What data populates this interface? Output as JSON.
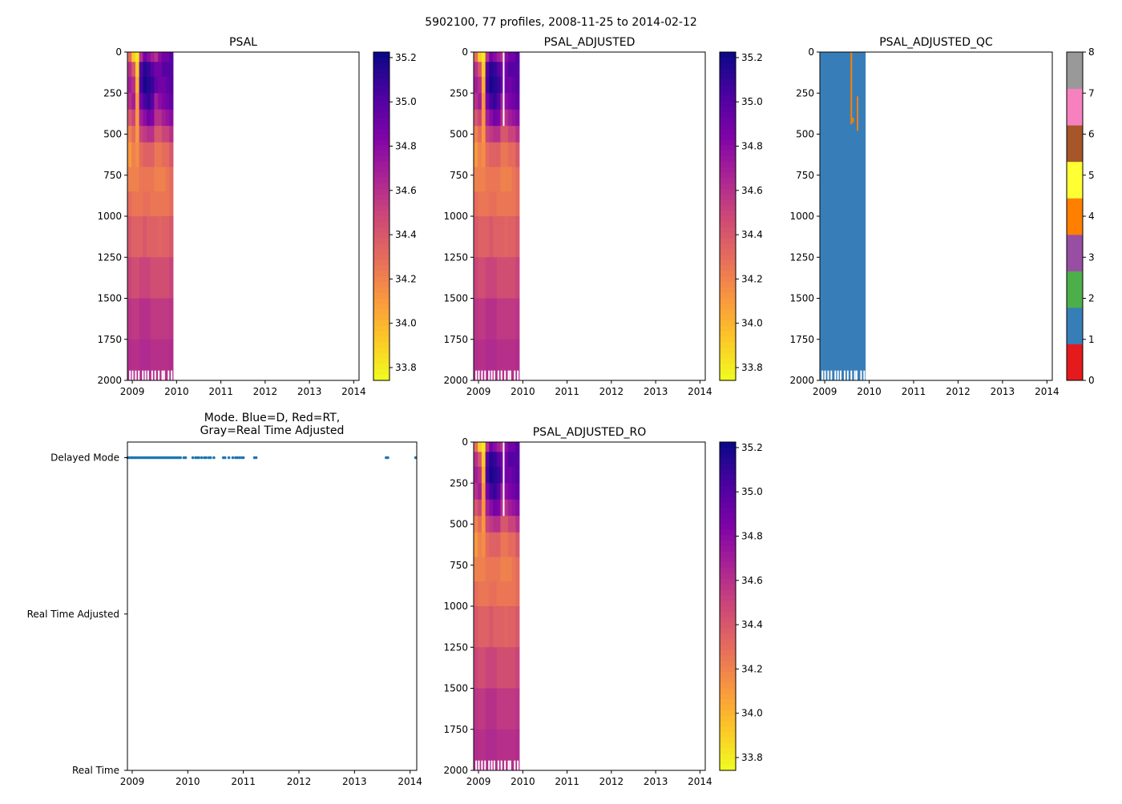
{
  "suptitle": "5902100, 77 profiles, 2008-11-25 to 2014-02-12",
  "chart_data": [
    {
      "id": "psal",
      "type": "heatmap",
      "title": "PSAL",
      "xlim": [
        2008.89,
        2014.12
      ],
      "ylim": [
        2000,
        0
      ],
      "xticks": [
        2009,
        2010,
        2011,
        2012,
        2013,
        2014
      ],
      "yticks": [
        0,
        250,
        500,
        750,
        1000,
        1250,
        1500,
        1750,
        2000
      ],
      "colorbar": {
        "cmap": "plasma_r",
        "range": [
          33.742,
          35.225
        ],
        "ticks": [
          "33.8",
          "34.0",
          "34.2",
          "34.4",
          "34.6",
          "34.8",
          "35.0",
          "35.2"
        ]
      },
      "columns_start": 2008.9,
      "columns_end": 2009.92,
      "depth_bounds": [
        0,
        60,
        150,
        250,
        350,
        450,
        550,
        700,
        850,
        1000,
        1250,
        1500,
        1750,
        2000
      ],
      "values": [
        [
          34.3,
          33.9,
          33.8,
          34.6,
          34.9,
          34.8,
          34.7,
          34.6,
          34.8,
          34.9,
          34.9,
          35.0
        ],
        [
          34.6,
          34.4,
          33.9,
          35.0,
          35.15,
          35.1,
          35.0,
          34.9,
          34.9,
          35.0,
          35.0,
          35.0
        ],
        [
          34.7,
          34.6,
          34.0,
          35.05,
          35.2,
          35.15,
          35.1,
          34.95,
          34.9,
          34.9,
          34.95,
          35.0
        ],
        [
          34.6,
          34.7,
          34.1,
          34.9,
          35.05,
          35.1,
          35.0,
          34.7,
          34.8,
          34.85,
          34.9,
          34.95
        ],
        [
          34.4,
          34.5,
          34.1,
          34.7,
          34.8,
          34.9,
          34.85,
          34.6,
          34.6,
          34.7,
          34.75,
          34.8
        ],
        [
          34.2,
          34.3,
          34.1,
          34.5,
          34.55,
          34.6,
          34.6,
          34.4,
          34.4,
          34.5,
          34.5,
          34.6
        ],
        [
          34.1,
          34.2,
          34.15,
          34.3,
          34.35,
          34.35,
          34.35,
          34.25,
          34.25,
          34.3,
          34.3,
          34.4
        ],
        [
          34.2,
          34.2,
          34.2,
          34.25,
          34.25,
          34.25,
          34.25,
          34.2,
          34.2,
          34.2,
          34.25,
          34.3
        ],
        [
          34.3,
          34.25,
          34.25,
          34.25,
          34.28,
          34.28,
          34.25,
          34.25,
          34.25,
          34.25,
          34.25,
          34.3
        ],
        [
          34.4,
          34.35,
          34.35,
          34.35,
          34.4,
          34.35,
          34.35,
          34.35,
          34.33,
          34.35,
          34.35,
          34.4
        ],
        [
          34.5,
          34.45,
          34.45,
          34.5,
          34.5,
          34.5,
          34.45,
          34.45,
          34.45,
          34.45,
          34.45,
          34.5
        ],
        [
          34.58,
          34.55,
          34.55,
          34.6,
          34.6,
          34.6,
          34.55,
          34.55,
          34.55,
          34.55,
          34.55,
          34.58
        ],
        [
          34.62,
          34.6,
          34.6,
          34.63,
          34.63,
          34.63,
          34.6,
          34.6,
          34.6,
          34.6,
          34.6,
          34.62
        ]
      ],
      "missing_bottom_dates": [
        2008.93,
        2008.99,
        2009.06,
        2009.13,
        2009.22,
        2009.28,
        2009.34,
        2009.43,
        2009.5,
        2009.58,
        2009.66,
        2009.7,
        2009.8,
        2009.87
      ],
      "missing_bottom_depth": 1940
    },
    {
      "id": "psal_adj",
      "type": "heatmap",
      "title": "PSAL_ADJUSTED",
      "values_from": "psal",
      "xticks": [
        2009,
        2010,
        2011,
        2012,
        2013,
        2014
      ],
      "yticks": [
        0,
        250,
        500,
        750,
        1000,
        1250,
        1500,
        1750,
        2000
      ],
      "colorbar": {
        "cmap": "plasma_r",
        "range": [
          33.742,
          35.225
        ],
        "ticks": [
          "33.8",
          "34.0",
          "34.2",
          "34.4",
          "34.6",
          "34.8",
          "35.0",
          "35.2"
        ]
      },
      "gap": {
        "date": 2009.55,
        "depth": [
          0,
          450
        ]
      }
    },
    {
      "id": "qc",
      "type": "heatmap",
      "title": "PSAL_ADJUSTED_QC",
      "xticks": [
        2009,
        2010,
        2011,
        2012,
        2013,
        2014
      ],
      "yticks": [
        0,
        250,
        500,
        750,
        1000,
        1250,
        1500,
        1750,
        2000
      ],
      "base_flag": 1,
      "flag_segments": [
        {
          "flag": 4,
          "date": 2009.58,
          "depth": [
            0,
            440
          ]
        },
        {
          "flag": 4,
          "date": 2009.62,
          "depth": [
            400,
            430
          ]
        },
        {
          "flag": 4,
          "date": 2009.72,
          "depth": [
            270,
            480
          ]
        }
      ],
      "colorbar": {
        "cmap": "Set1",
        "ticks": [
          "0",
          "1",
          "2",
          "3",
          "4",
          "5",
          "6",
          "7",
          "8"
        ],
        "colors": [
          "#e41a1c",
          "#377eb8",
          "#4daf4a",
          "#984ea3",
          "#ff7f00",
          "#ffff33",
          "#a65628",
          "#f781bf",
          "#999999"
        ]
      }
    },
    {
      "id": "mode",
      "type": "scatter",
      "title_lines": [
        "Mode. Blue=D, Red=RT,",
        "Gray=Real Time Adjusted"
      ],
      "xlim": [
        2008.914,
        2014.12
      ],
      "xticks": [
        2009,
        2010,
        2011,
        2012,
        2013,
        2014
      ],
      "ycategories": [
        "Real Time",
        "Real Time Adjusted",
        "Delayed Mode"
      ],
      "ylim": [
        0,
        2.1
      ],
      "color": "#1f77b4",
      "points": [
        {
          "x": 2008.92,
          "y": 2
        },
        {
          "x": 2008.95,
          "y": 2
        },
        {
          "x": 2008.98,
          "y": 2
        },
        {
          "x": 2009.0,
          "y": 2
        },
        {
          "x": 2009.03,
          "y": 2
        },
        {
          "x": 2009.06,
          "y": 2
        },
        {
          "x": 2009.09,
          "y": 2
        },
        {
          "x": 2009.12,
          "y": 2
        },
        {
          "x": 2009.15,
          "y": 2
        },
        {
          "x": 2009.18,
          "y": 2
        },
        {
          "x": 2009.21,
          "y": 2
        },
        {
          "x": 2009.24,
          "y": 2
        },
        {
          "x": 2009.27,
          "y": 2
        },
        {
          "x": 2009.3,
          "y": 2
        },
        {
          "x": 2009.33,
          "y": 2
        },
        {
          "x": 2009.36,
          "y": 2
        },
        {
          "x": 2009.39,
          "y": 2
        },
        {
          "x": 2009.42,
          "y": 2
        },
        {
          "x": 2009.45,
          "y": 2
        },
        {
          "x": 2009.48,
          "y": 2
        },
        {
          "x": 2009.51,
          "y": 2
        },
        {
          "x": 2009.54,
          "y": 2
        },
        {
          "x": 2009.57,
          "y": 2
        },
        {
          "x": 2009.6,
          "y": 2
        },
        {
          "x": 2009.63,
          "y": 2
        },
        {
          "x": 2009.66,
          "y": 2
        },
        {
          "x": 2009.69,
          "y": 2
        },
        {
          "x": 2009.72,
          "y": 2
        },
        {
          "x": 2009.75,
          "y": 2
        },
        {
          "x": 2009.78,
          "y": 2
        },
        {
          "x": 2009.81,
          "y": 2
        },
        {
          "x": 2009.84,
          "y": 2
        },
        {
          "x": 2009.87,
          "y": 2
        },
        {
          "x": 2009.93,
          "y": 2
        },
        {
          "x": 2009.96,
          "y": 2
        },
        {
          "x": 2010.09,
          "y": 2
        },
        {
          "x": 2010.14,
          "y": 2
        },
        {
          "x": 2010.17,
          "y": 2
        },
        {
          "x": 2010.2,
          "y": 2
        },
        {
          "x": 2010.25,
          "y": 2
        },
        {
          "x": 2010.3,
          "y": 2
        },
        {
          "x": 2010.33,
          "y": 2
        },
        {
          "x": 2010.38,
          "y": 2
        },
        {
          "x": 2010.41,
          "y": 2
        },
        {
          "x": 2010.47,
          "y": 2
        },
        {
          "x": 2010.64,
          "y": 2
        },
        {
          "x": 2010.67,
          "y": 2
        },
        {
          "x": 2010.74,
          "y": 2
        },
        {
          "x": 2010.81,
          "y": 2
        },
        {
          "x": 2010.86,
          "y": 2
        },
        {
          "x": 2010.89,
          "y": 2
        },
        {
          "x": 2010.93,
          "y": 2
        },
        {
          "x": 2010.97,
          "y": 2
        },
        {
          "x": 2011.0,
          "y": 2
        },
        {
          "x": 2011.2,
          "y": 2
        },
        {
          "x": 2011.23,
          "y": 2
        },
        {
          "x": 2013.57,
          "y": 2
        },
        {
          "x": 2013.6,
          "y": 2
        },
        {
          "x": 2014.1,
          "y": 2
        }
      ]
    },
    {
      "id": "psal_ro",
      "type": "heatmap",
      "title": "PSAL_ADJUSTED_RO",
      "values_from": "psal",
      "xticks": [
        2009,
        2010,
        2011,
        2012,
        2013,
        2014
      ],
      "yticks": [
        0,
        250,
        500,
        750,
        1000,
        1250,
        1500,
        1750,
        2000
      ],
      "colorbar": {
        "cmap": "plasma_r",
        "range": [
          33.742,
          35.225
        ],
        "ticks": [
          "33.8",
          "34.0",
          "34.2",
          "34.4",
          "34.6",
          "34.8",
          "35.0",
          "35.2"
        ]
      },
      "gap": {
        "date": 2009.55,
        "depth": [
          0,
          450
        ]
      }
    }
  ]
}
